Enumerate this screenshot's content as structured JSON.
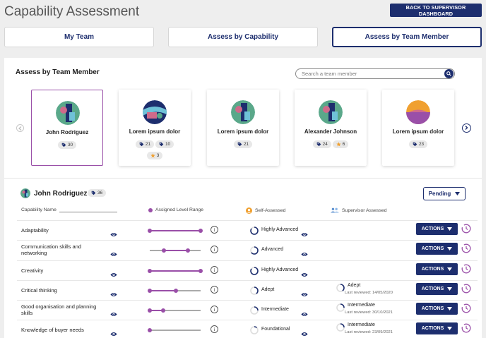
{
  "header": {
    "title": "Capability Assessment",
    "back_button": "BACK TO SUPERVISOR DASHBOARD"
  },
  "tabs": [
    {
      "label": "My Team",
      "active": false
    },
    {
      "label": "Assess by Capability",
      "active": false
    },
    {
      "label": "Assess by Team Member",
      "active": true
    }
  ],
  "section": {
    "title": "Assess by Team Member",
    "search_placeholder": "Search a team member"
  },
  "members": [
    {
      "name": "John Rodriguez",
      "avatar": "teal",
      "tags": "30",
      "tags2": null,
      "stars": null,
      "selected": true
    },
    {
      "name": "Lorem ipsum dolor",
      "avatar": "navy",
      "tags": "21",
      "tags2": "10",
      "stars": "3",
      "selected": false
    },
    {
      "name": "Lorem ipsum dolor",
      "avatar": "teal",
      "tags": "21",
      "tags2": null,
      "stars": null,
      "selected": false
    },
    {
      "name": "Alexander Johnson",
      "avatar": "teal",
      "tags": "24",
      "tags2": null,
      "stars": "6",
      "selected": false
    },
    {
      "name": "Lorem ipsum dolor",
      "avatar": "orange",
      "tags": "23",
      "tags2": null,
      "stars": null,
      "selected": false
    }
  ],
  "selected_member": {
    "name": "John Rodriguez",
    "tags": "36",
    "status": "Pending"
  },
  "columns": {
    "capability": "Capability Name",
    "assigned": "Assigned Level Range",
    "self": "Self-Assessed",
    "supervisor": "Supervisor Assessed"
  },
  "actions_label": "ACTIONS",
  "rows": [
    {
      "name": "Adaptability",
      "range": [
        0,
        1
      ],
      "self": "Highly Advanced",
      "self_progress": 0.85,
      "supervisor": null,
      "reviewed": null
    },
    {
      "name": "Communication skills and networking",
      "range": [
        0.28,
        0.75
      ],
      "self": "Advanced",
      "self_progress": 0.65,
      "supervisor": null,
      "reviewed": null
    },
    {
      "name": "Creativity",
      "range": [
        0,
        1
      ],
      "self": "Highly Advanced",
      "self_progress": 0.85,
      "supervisor": null,
      "reviewed": null
    },
    {
      "name": "Critical thinking",
      "range": [
        0,
        0.52
      ],
      "self": "Adept",
      "self_progress": 0.4,
      "supervisor": "Adept",
      "supervisor_progress": 0.4,
      "reviewed": "Last reviewed: 14/05/2020"
    },
    {
      "name": "Good organisation and planning skills",
      "range": [
        0,
        0.27
      ],
      "self": "Intermediate",
      "self_progress": 0.25,
      "supervisor": "Intermediate",
      "supervisor_progress": 0.25,
      "reviewed": "Last reviewed: 30/10/2021"
    },
    {
      "name": "Knowledge of buyer needs",
      "range": [
        0,
        0
      ],
      "self": "Foundational",
      "self_progress": 0.12,
      "supervisor": "Intermediate",
      "supervisor_progress": 0.25,
      "reviewed": "Last reviewed: 23/09/2021"
    }
  ],
  "colors": {
    "primary": "#1d2e6e",
    "accent": "#9a4fa8",
    "self_icon": "#f0a030",
    "supervisor_icon": "#5a8fcf"
  }
}
